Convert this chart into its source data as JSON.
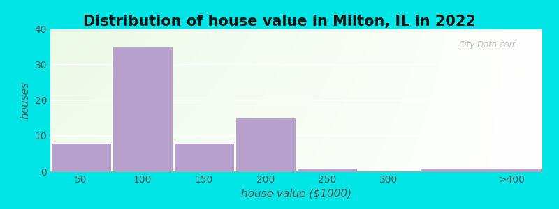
{
  "title": "Distribution of house value in Milton, IL in 2022",
  "xlabel": "house value ($1000)",
  "ylabel": "houses",
  "categories": [
    "50",
    "100",
    "150",
    "200",
    "250",
    "300",
    ">400"
  ],
  "bin_edges": [
    25,
    75,
    125,
    175,
    225,
    275,
    325,
    425
  ],
  "values": [
    8,
    35,
    8,
    15,
    1,
    0,
    1
  ],
  "bar_color": "#b8a0cc",
  "bar_edgecolor": "#ffffff",
  "ylim": [
    0,
    40
  ],
  "yticks": [
    0,
    10,
    20,
    30,
    40
  ],
  "xtick_positions": [
    50,
    100,
    150,
    200,
    250,
    300,
    400
  ],
  "xtick_labels": [
    "50",
    "100",
    "150",
    "200",
    "250",
    "300",
    ">400"
  ],
  "background_color": "#00e5e5",
  "title_fontsize": 15,
  "axis_fontsize": 11,
  "tick_fontsize": 10,
  "watermark": "City-Data.com"
}
